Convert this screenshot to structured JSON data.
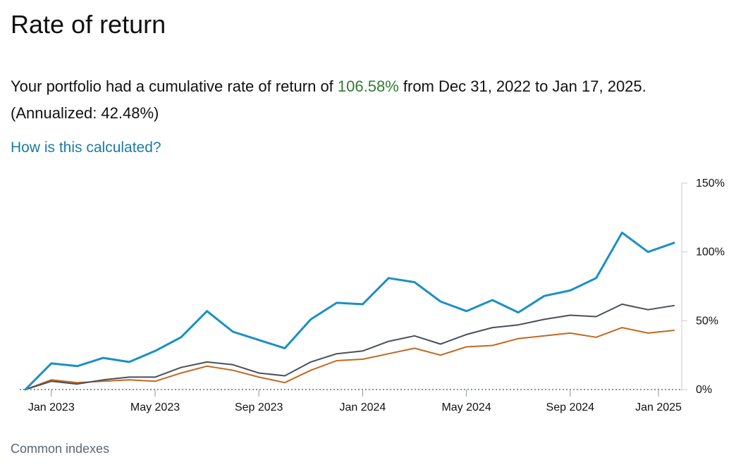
{
  "page": {
    "title": "Rate of return",
    "summary_prefix": "Your portfolio had a cumulative rate of return of ",
    "summary_value": "106.58%",
    "summary_suffix": " from Dec 31, 2022 to Jan 17, 2025. (Annualized: 42.48%)",
    "link_label": "How is this calculated?",
    "section_label": "Common indexes",
    "gain_color": "#2e7d32",
    "link_color": "#1a7ca5"
  },
  "chart_data": {
    "type": "line",
    "title": "",
    "xlabel": "",
    "ylabel": "",
    "ylim": [
      0,
      150
    ],
    "y_ticks": [
      "0%",
      "50%",
      "100%",
      "150%"
    ],
    "x_ticks": [
      "Jan 2023",
      "May 2023",
      "Sep 2023",
      "Jan 2024",
      "May 2024",
      "Sep 2024",
      "Jan 2025"
    ],
    "x": [
      "Dec 31, 2022",
      "Jan 31, 2023",
      "Feb 28, 2023",
      "Mar 31, 2023",
      "Apr 30, 2023",
      "May 31, 2023",
      "Jun 30, 2023",
      "Jul 31, 2023",
      "Aug 31, 2023",
      "Sep 30, 2023",
      "Oct 31, 2023",
      "Nov 30, 2023",
      "Dec 31, 2023",
      "Jan 31, 2024",
      "Feb 29, 2024",
      "Mar 31, 2024",
      "Apr 30, 2024",
      "May 31, 2024",
      "Jun 30, 2024",
      "Jul 31, 2024",
      "Aug 31, 2024",
      "Sep 30, 2024",
      "Oct 31, 2024",
      "Nov 30, 2024",
      "Dec 31, 2024",
      "Jan 17, 2025"
    ],
    "grid": false,
    "legend": "none",
    "baseline": "dotted at 0%",
    "series": [
      {
        "color": "#1a8fc7",
        "values": [
          0,
          19,
          17,
          23,
          20,
          28,
          38,
          57,
          42,
          36,
          30,
          51,
          63,
          62,
          81,
          78,
          64,
          57,
          65,
          56,
          68,
          72,
          81,
          114,
          100,
          106.58
        ]
      },
      {
        "color": "#4a4f57",
        "values": [
          0,
          6,
          4,
          7,
          9,
          9,
          16,
          20,
          18,
          12,
          10,
          20,
          26,
          28,
          35,
          39,
          33,
          40,
          45,
          47,
          51,
          54,
          53,
          62,
          58,
          61
        ]
      },
      {
        "color": "#c2681f",
        "values": [
          0,
          7,
          5,
          6,
          7,
          6,
          12,
          17,
          14,
          9,
          5,
          14,
          21,
          22,
          26,
          30,
          25,
          31,
          32,
          37,
          39,
          41,
          38,
          45,
          41,
          43
        ]
      }
    ]
  }
}
